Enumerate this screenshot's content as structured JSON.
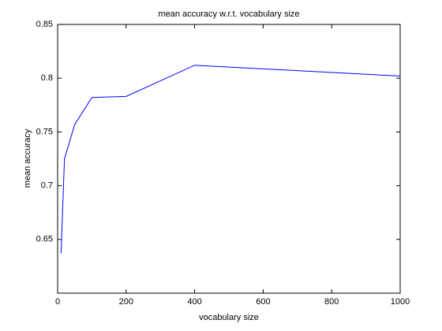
{
  "chart_data": {
    "type": "line",
    "title": "mean accuracy w.r.t. vocabulary size",
    "x_label": "vocabulary size",
    "y_label": "mean accuracy",
    "x": [
      10,
      20,
      50,
      100,
      200,
      400,
      1000
    ],
    "series": [
      {
        "color": "#0000ff",
        "values": [
          0.637,
          0.725,
          0.757,
          0.782,
          0.783,
          0.812,
          0.802
        ]
      }
    ],
    "xlim": [
      0,
      1000
    ],
    "xticks": [
      0,
      200,
      400,
      600,
      800,
      1000
    ],
    "ylim": [
      0.6,
      0.85
    ],
    "yticks": [
      0.65,
      0.7,
      0.75,
      0.8,
      0.85
    ],
    "grid": false
  }
}
